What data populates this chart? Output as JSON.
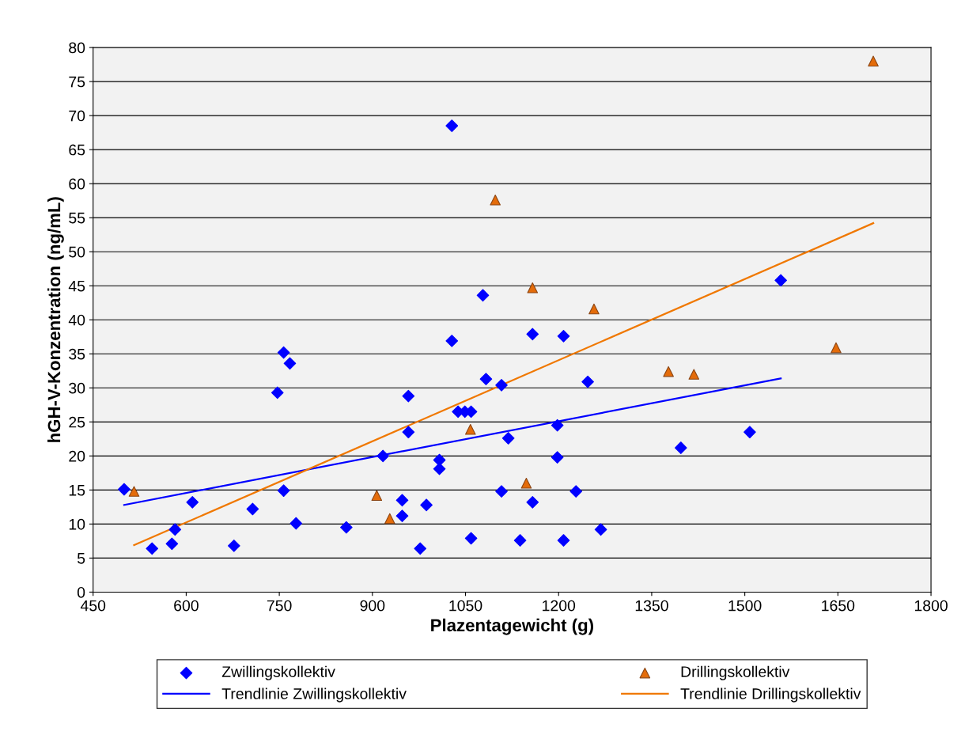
{
  "chart_data": {
    "type": "scatter",
    "xlabel": "Plazentagewicht (g)",
    "ylabel": "hGH-V-Konzentration (ng/mL)",
    "xlim": [
      450,
      1800
    ],
    "xticks": [
      450,
      600,
      750,
      900,
      1050,
      1200,
      1350,
      1500,
      1650,
      1800
    ],
    "ylim": [
      0,
      80
    ],
    "yticks": [
      0,
      5,
      10,
      15,
      20,
      25,
      30,
      35,
      40,
      45,
      50,
      55,
      60,
      65,
      70,
      75,
      80
    ],
    "grid": "y",
    "legend": "bottom",
    "series": [
      {
        "name": "Zwillingskollektiv",
        "marker": "diamond",
        "color": "#0000ff",
        "x": [
          500,
          545,
          577,
          582,
          610,
          677,
          707,
          747,
          757,
          767,
          757,
          777,
          858,
          917,
          948,
          948,
          958,
          958,
          977,
          987,
          1008,
          1008,
          1028,
          1028,
          1038,
          1049,
          1059,
          1059,
          1078,
          1083,
          1108,
          1108,
          1119,
          1138,
          1158,
          1158,
          1198,
          1198,
          1208,
          1208,
          1228,
          1247,
          1268,
          1397,
          1508,
          1558
        ],
        "values": [
          15.1,
          6.4,
          7.1,
          9.2,
          13.2,
          6.8,
          12.2,
          29.3,
          35.2,
          33.6,
          14.9,
          10.1,
          9.5,
          20.0,
          13.5,
          11.2,
          23.5,
          28.8,
          6.4,
          12.8,
          19.4,
          18.1,
          36.9,
          68.5,
          26.5,
          26.5,
          26.5,
          7.9,
          43.6,
          31.3,
          30.4,
          14.8,
          22.6,
          7.6,
          37.9,
          13.2,
          24.5,
          19.8,
          37.6,
          7.6,
          14.8,
          30.9,
          9.2,
          21.2,
          23.5,
          45.8
        ]
      },
      {
        "name": "Drillingskollektiv",
        "marker": "triangle",
        "color": "#e46c0a",
        "x": [
          516,
          907,
          928,
          1058,
          1098,
          1148,
          1158,
          1257,
          1377,
          1418,
          1647,
          1707
        ],
        "values": [
          14.8,
          14.2,
          10.8,
          23.9,
          57.6,
          16.0,
          44.7,
          41.6,
          32.4,
          32.0,
          35.9,
          78.0
        ]
      },
      {
        "name": "Trendlinie Zwillingskollektiv",
        "type": "line",
        "marker": "none",
        "line_style": "solid",
        "color": "#0000ff",
        "x": [
          500,
          1558
        ],
        "values": [
          12.8,
          31.4
        ]
      },
      {
        "name": "Trendlinie Drillingskollektiv",
        "type": "line",
        "marker": "none",
        "line_style": "solid",
        "color": "#f07800",
        "x": [
          516,
          1707
        ],
        "values": [
          6.9,
          54.2
        ]
      }
    ]
  }
}
